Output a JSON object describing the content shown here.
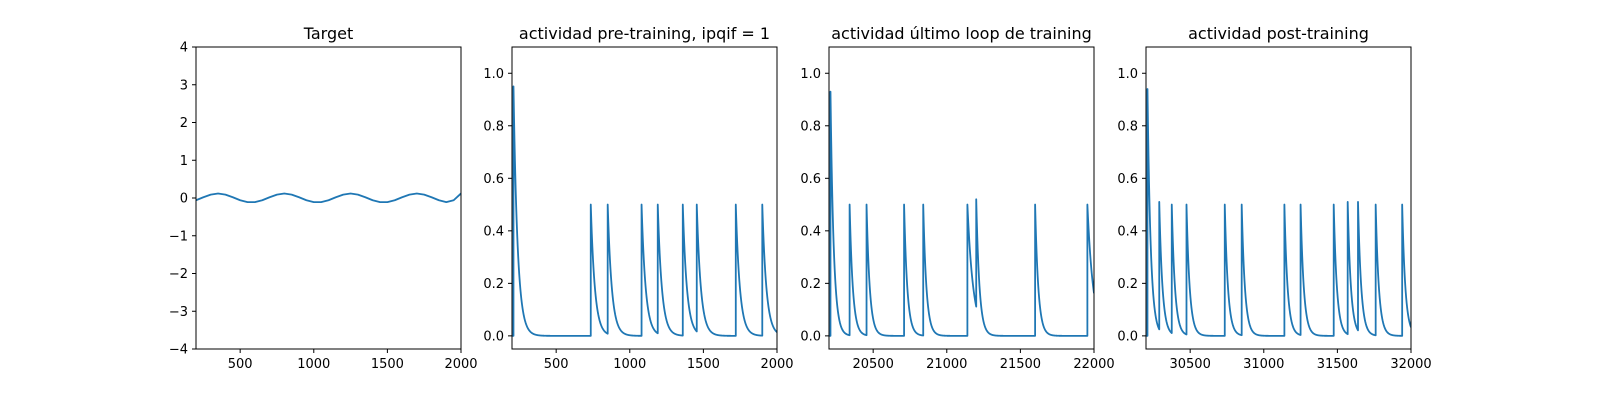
{
  "chart_data": [
    {
      "type": "line",
      "title": "Target",
      "xlim": [
        200,
        2000
      ],
      "ylim": [
        -4,
        4
      ],
      "xticks": [
        500,
        1000,
        1500,
        2000
      ],
      "yticks": [
        -4,
        -3,
        -2,
        -1,
        0,
        1,
        2,
        3,
        4
      ],
      "xtick_labels": [
        "500",
        "1000",
        "1500",
        "2000"
      ],
      "ytick_labels": [
        "−4",
        "−3",
        "−2",
        "−1",
        "0",
        "1",
        "2",
        "3",
        "4"
      ],
      "series": [
        {
          "color": "#1f77b4",
          "x": [
            200,
            250,
            300,
            350,
            400,
            450,
            500,
            550,
            600,
            650,
            700,
            750,
            800,
            850,
            900,
            950,
            1000,
            1050,
            1100,
            1150,
            1200,
            1250,
            1300,
            1350,
            1400,
            1450,
            1500,
            1550,
            1600,
            1650,
            1700,
            1750,
            1800,
            1850,
            1900,
            1950,
            2000
          ],
          "y": [
            -0.06,
            0.02,
            0.09,
            0.12,
            0.09,
            0.02,
            -0.06,
            -0.11,
            -0.11,
            -0.06,
            0.02,
            0.09,
            0.12,
            0.09,
            0.02,
            -0.06,
            -0.11,
            -0.11,
            -0.06,
            0.02,
            0.09,
            0.12,
            0.09,
            0.02,
            -0.06,
            -0.11,
            -0.11,
            -0.06,
            0.02,
            0.09,
            0.12,
            0.09,
            0.02,
            -0.06,
            -0.11,
            -0.06,
            0.12
          ]
        }
      ]
    },
    {
      "type": "line",
      "title": "actividad pre-training, ipqif = 1",
      "xlim": [
        200,
        2000
      ],
      "ylim": [
        -0.05,
        1.1
      ],
      "xticks": [
        500,
        1000,
        1500,
        2000
      ],
      "yticks": [
        0.0,
        0.2,
        0.4,
        0.6,
        0.8,
        1.0
      ],
      "xtick_labels": [
        "500",
        "1000",
        "1500",
        "2000"
      ],
      "ytick_labels": [
        "0.0",
        "0.2",
        "0.4",
        "0.6",
        "0.8",
        "1.0"
      ],
      "series": [
        {
          "color": "#1f77b4",
          "initial_spike": {
            "x": 210,
            "peak": 0.95,
            "decay": 28
          },
          "spikes": [
            {
              "x": 735,
              "peak": 0.5,
              "decay": 28
            },
            {
              "x": 850,
              "peak": 0.5,
              "decay": 28
            },
            {
              "x": 1080,
              "peak": 0.5,
              "decay": 28
            },
            {
              "x": 1190,
              "peak": 0.5,
              "decay": 28
            },
            {
              "x": 1360,
              "peak": 0.5,
              "decay": 28
            },
            {
              "x": 1455,
              "peak": 0.5,
              "decay": 28
            },
            {
              "x": 1720,
              "peak": 0.5,
              "decay": 28
            },
            {
              "x": 1900,
              "peak": 0.5,
              "decay": 28
            }
          ]
        }
      ]
    },
    {
      "type": "line",
      "title": "actividad último loop de training",
      "xlim": [
        20200,
        22000
      ],
      "ylim": [
        -0.05,
        1.1
      ],
      "xticks": [
        20500,
        21000,
        21500,
        22000
      ],
      "yticks": [
        0.0,
        0.2,
        0.4,
        0.6,
        0.8,
        1.0
      ],
      "xtick_labels": [
        "20500",
        "21000",
        "21500",
        "22000"
      ],
      "ytick_labels": [
        "0.0",
        "0.2",
        "0.4",
        "0.6",
        "0.8",
        "1.0"
      ],
      "series": [
        {
          "color": "#1f77b4",
          "initial_spike": {
            "x": 20210,
            "peak": 0.93,
            "decay": 22
          },
          "spikes": [
            {
              "x": 20340,
              "peak": 0.5,
              "decay": 22
            },
            {
              "x": 20455,
              "peak": 0.5,
              "decay": 22
            },
            {
              "x": 20710,
              "peak": 0.5,
              "decay": 22
            },
            {
              "x": 20840,
              "peak": 0.5,
              "decay": 22
            },
            {
              "x": 21140,
              "peak": 0.5,
              "decay": 40
            },
            {
              "x": 21200,
              "peak": 0.52,
              "decay": 22
            },
            {
              "x": 21600,
              "peak": 0.5,
              "decay": 22
            },
            {
              "x": 21955,
              "peak": 0.5,
              "decay": 40
            }
          ]
        }
      ]
    },
    {
      "type": "line",
      "title": "actividad post-training",
      "xlim": [
        30200,
        32000
      ],
      "ylim": [
        -0.05,
        1.1
      ],
      "xticks": [
        30500,
        31000,
        31500,
        32000
      ],
      "yticks": [
        0.0,
        0.2,
        0.4,
        0.6,
        0.8,
        1.0
      ],
      "xtick_labels": [
        "30500",
        "31000",
        "31500",
        "32000"
      ],
      "ytick_labels": [
        "0.0",
        "0.2",
        "0.4",
        "0.6",
        "0.8",
        "1.0"
      ],
      "series": [
        {
          "color": "#1f77b4",
          "initial_spike": {
            "x": 30210,
            "peak": 0.94,
            "decay": 22
          },
          "spikes": [
            {
              "x": 30290,
              "peak": 0.51,
              "decay": 22
            },
            {
              "x": 30375,
              "peak": 0.5,
              "decay": 22
            },
            {
              "x": 30475,
              "peak": 0.5,
              "decay": 22
            },
            {
              "x": 30735,
              "peak": 0.5,
              "decay": 22
            },
            {
              "x": 30850,
              "peak": 0.5,
              "decay": 22
            },
            {
              "x": 31140,
              "peak": 0.5,
              "decay": 22
            },
            {
              "x": 31250,
              "peak": 0.5,
              "decay": 22
            },
            {
              "x": 31475,
              "peak": 0.5,
              "decay": 22
            },
            {
              "x": 31570,
              "peak": 0.51,
              "decay": 22
            },
            {
              "x": 31640,
              "peak": 0.51,
              "decay": 22
            },
            {
              "x": 31760,
              "peak": 0.5,
              "decay": 22
            },
            {
              "x": 31940,
              "peak": 0.5,
              "decay": 22
            }
          ]
        }
      ]
    }
  ]
}
